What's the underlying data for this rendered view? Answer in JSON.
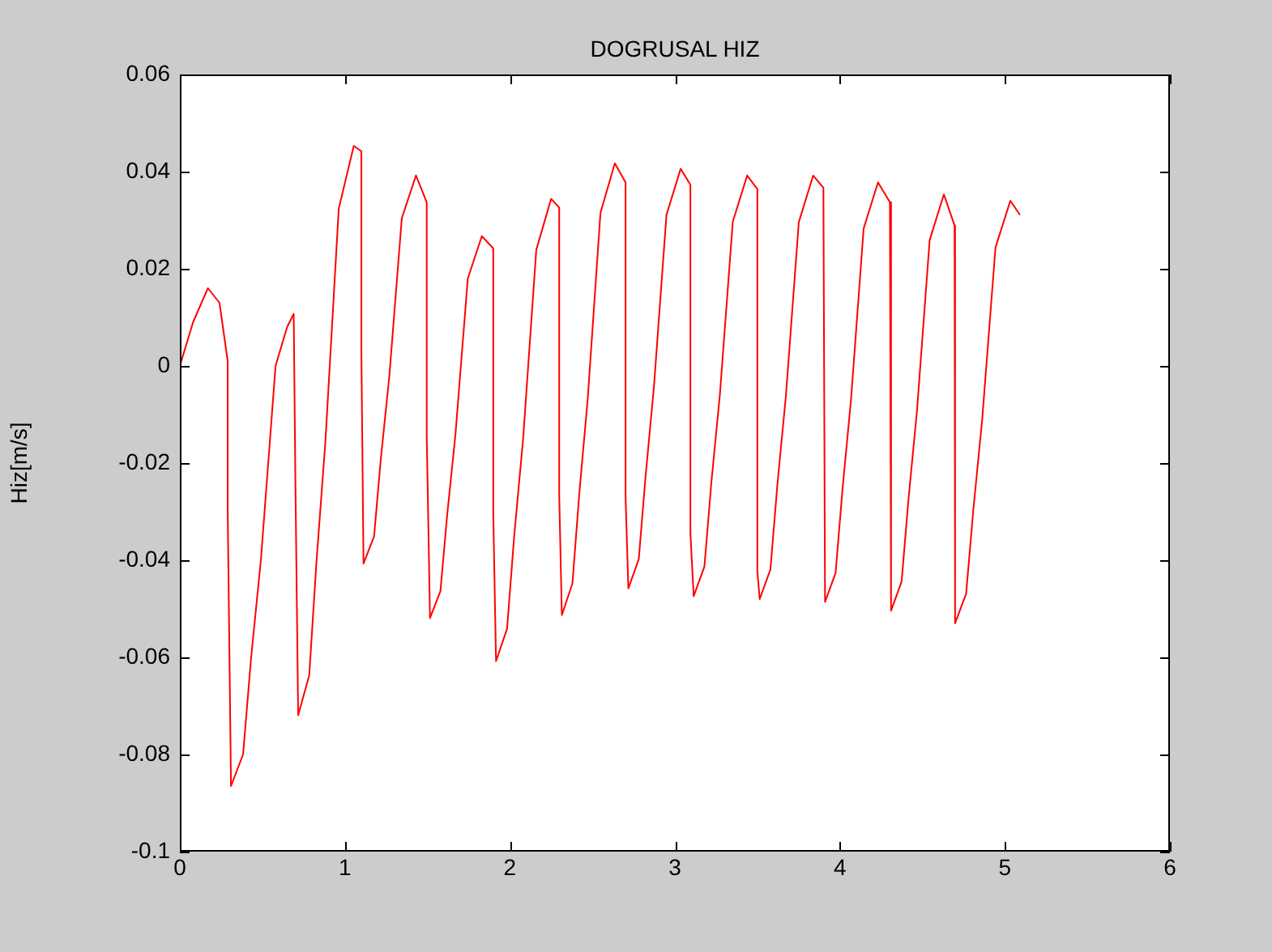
{
  "chart_data": {
    "type": "line",
    "title": "DOGRUSAL HIZ",
    "ylabel": "Hiz[m/s]",
    "xlim": [
      0,
      6
    ],
    "xticks": [
      0,
      1,
      2,
      3,
      4,
      5,
      6
    ],
    "ylim": [
      -0.1,
      0.06
    ],
    "yticks": [
      -0.1,
      -0.08,
      -0.06,
      -0.04,
      -0.02,
      0,
      0.02,
      0.04,
      0.06
    ],
    "line_style": "solid",
    "marker": "none",
    "series": [
      {
        "color": "#ff0000",
        "x": [
          0,
          0.08,
          0.17,
          0.24,
          0.29,
          0.29,
          0.31,
          0.383,
          0.432,
          0.491,
          0.58,
          0.65,
          0.69,
          0.7,
          0.717,
          0.784,
          0.828,
          0.882,
          0.963,
          1.054,
          1.1,
          1.1,
          1.113,
          1.177,
          1.218,
          1.269,
          1.345,
          1.431,
          1.496,
          1.496,
          1.516,
          1.579,
          1.62,
          1.67,
          1.745,
          1.83,
          1.899,
          1.899,
          1.916,
          1.983,
          2.026,
          2.08,
          2.16,
          2.25,
          2.299,
          2.299,
          2.315,
          2.379,
          2.421,
          2.472,
          2.549,
          2.636,
          2.701,
          2.701,
          2.718,
          2.781,
          2.823,
          2.873,
          2.949,
          3.035,
          3.094,
          3.094,
          3.114,
          3.179,
          3.221,
          3.273,
          3.351,
          3.438,
          3.5,
          3.5,
          3.514,
          3.579,
          3.621,
          3.673,
          3.751,
          3.838,
          3.9,
          3.91,
          3.974,
          4.016,
          4.067,
          4.144,
          4.231,
          4.303,
          4.31,
          4.374,
          4.416,
          4.467,
          4.544,
          4.63,
          4.695,
          4.698,
          4.765,
          4.809,
          4.862,
          4.943,
          5.033,
          5.089
        ],
        "values": [
          0,
          0.009,
          0.016,
          0.013,
          0.001,
          -0.03,
          -0.0865,
          -0.08,
          -0.06,
          -0.04,
          0,
          0.008,
          0.0107,
          -0.0233,
          -0.0719,
          -0.0637,
          -0.0403,
          -0.0156,
          0.0324,
          0.0453,
          0.0442,
          0.0031,
          -0.0407,
          -0.0351,
          -0.0191,
          -0.0023,
          0.0304,
          0.0392,
          0.0337,
          -0.0143,
          -0.0519,
          -0.0464,
          -0.0307,
          -0.0142,
          0.018,
          0.0267,
          0.0242,
          -0.0297,
          -0.0608,
          -0.0541,
          -0.0351,
          -0.0151,
          0.0239,
          0.0344,
          0.0326,
          -0.0266,
          -0.0513,
          -0.0448,
          -0.0262,
          -0.0067,
          0.0315,
          0.0417,
          0.0378,
          -0.0269,
          -0.0458,
          -0.0398,
          -0.0225,
          -0.0043,
          0.0311,
          0.0406,
          0.0373,
          -0.0344,
          -0.0474,
          -0.0413,
          -0.024,
          -0.0058,
          0.0297,
          0.0392,
          0.0364,
          -0.0424,
          -0.048,
          -0.0419,
          -0.0245,
          -0.0061,
          0.0296,
          0.0392,
          0.0367,
          -0.0486,
          -0.0426,
          -0.0253,
          -0.0071,
          0.0283,
          0.0378,
          0.0337,
          -0.0504,
          -0.0444,
          -0.0273,
          -0.0093,
          0.0259,
          0.0353,
          0.0289,
          -0.053,
          -0.0469,
          -0.0295,
          -0.0112,
          0.0244,
          0.034,
          0.0312
        ]
      }
    ]
  }
}
